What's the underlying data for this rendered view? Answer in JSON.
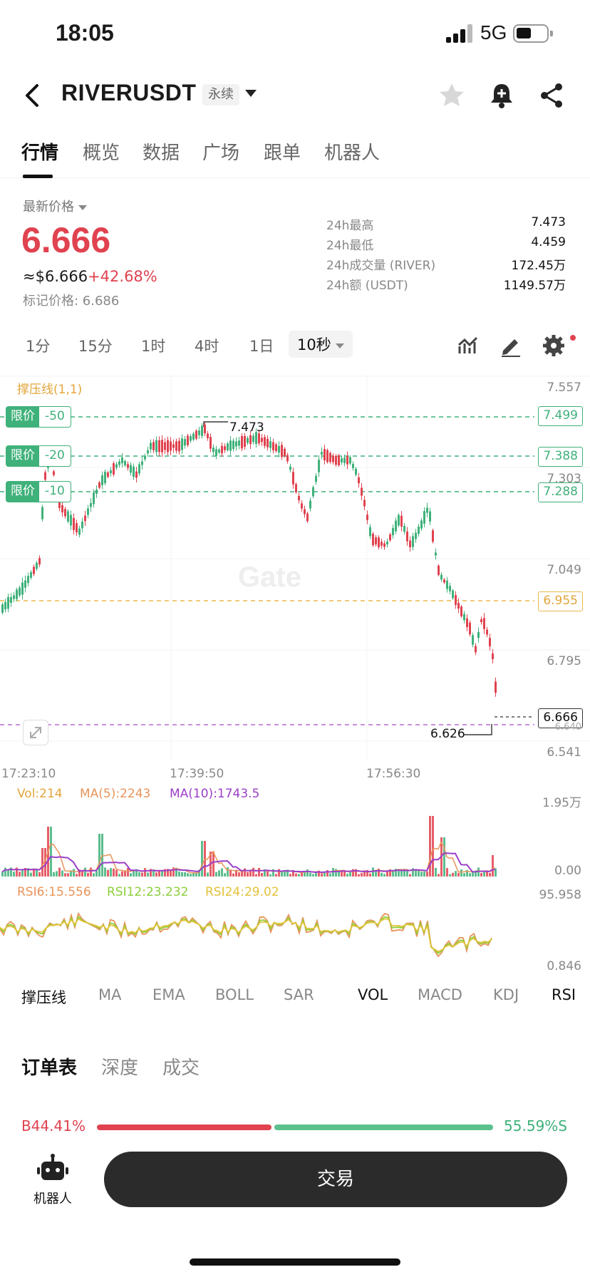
{
  "status": {
    "time": "18:05",
    "network": "5G"
  },
  "header": {
    "pair": "RIVERUSDT",
    "badge": "永续"
  },
  "tabs": [
    "行情",
    "概览",
    "数据",
    "广场",
    "跟单",
    "机器人"
  ],
  "price": {
    "latest_label": "最新价格",
    "last": "6.666",
    "usd": "≈$6.666",
    "change": "+42.68%",
    "mark": "标记价格: 6.686"
  },
  "stats": [
    {
      "k": "24h最高",
      "v": "7.473"
    },
    {
      "k": "24h最低",
      "v": "4.459"
    },
    {
      "k": "24h成交量 (RIVER)",
      "v": "172.45万"
    },
    {
      "k": "24h额 (USDT)",
      "v": "1149.57万"
    }
  ],
  "intervals": [
    "1分",
    "15分",
    "1时",
    "4时",
    "1日",
    "10秒"
  ],
  "chart": {
    "support_label": "撑压线(1,1)",
    "limit_tag_label": "限价",
    "limit_tags": [
      "-50",
      "-20",
      "-10"
    ],
    "y_axis": [
      "7.557",
      "7.303",
      "7.049",
      "6.795",
      "6.541"
    ],
    "boxes": [
      "7.499",
      "7.388",
      "7.288",
      "6.955",
      "6.666"
    ],
    "hidden_box": "6.640",
    "high_annot": "7.473",
    "low_annot": "6.626",
    "watermark": "Gate",
    "x_axis": [
      "17:23:10",
      "17:39:50",
      "17:56:30"
    ]
  },
  "volume": {
    "vol": "Vol:214",
    "ma5": "MA(5):2243",
    "ma10": "MA(10):1743.5",
    "top": "1.95万",
    "bottom": "0.00"
  },
  "rsi": {
    "r6": "RSI6:15.556",
    "r12": "RSI12:23.232",
    "r24": "RSI24:29.02",
    "top": "95.958",
    "bottom": "0.846"
  },
  "indicators": [
    "撑压线",
    "MA",
    "EMA",
    "BOLL",
    "SAR",
    "VOL",
    "MACD",
    "KDJ",
    "RSI"
  ],
  "orderbook_tabs": [
    "订单表",
    "深度",
    "成交"
  ],
  "ratio": {
    "buy": "B44.41%",
    "sell": "55.59%S",
    "buy_fraction": 0.4441
  },
  "bottom": {
    "robot": "机器人",
    "trade": "交易"
  },
  "colors": {
    "up": "#3fb17a",
    "down": "#e0424f",
    "accent_orange": "#e2a53a",
    "ma10": "#9b3fc8"
  }
}
